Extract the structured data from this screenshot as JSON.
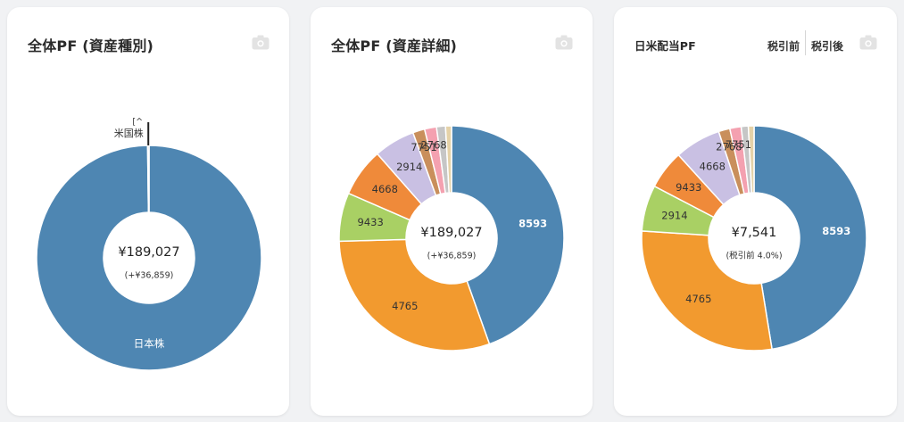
{
  "cards": [
    {
      "title": "全体PF (資産種別)",
      "center_main": "¥189,027",
      "center_sub": "(+¥36,859)"
    },
    {
      "title": "全体PF (資産詳細)",
      "center_main": "¥189,027",
      "center_sub": "(+¥36,859)"
    },
    {
      "title": "日米配当PF",
      "tabs": [
        "税引前",
        "税引後"
      ],
      "center_main": "¥7,541",
      "center_sub": "(税引前 4.0%)"
    }
  ],
  "icons": {
    "camera": "camera-icon"
  },
  "chart_data": [
    {
      "type": "pie",
      "title": "全体PF (資産種別)",
      "inner_radius_ratio": 0.4,
      "labels": [
        "日本株",
        "米国株"
      ],
      "values": [
        99.8,
        0.2
      ],
      "colors": [
        "#4e86b2",
        "#333333"
      ],
      "truncated_label": "[^"
    },
    {
      "type": "pie",
      "title": "全体PF (資産詳細)",
      "inner_radius_ratio": 0.4,
      "labels": [
        "8593",
        "4765",
        "9433",
        "4668",
        "2914",
        "7751",
        "2768",
        "",
        ""
      ],
      "values": [
        41.5,
        28.0,
        6.5,
        6.5,
        5.5,
        1.6,
        1.6,
        1.2,
        0.8
      ],
      "colors": [
        "#4e86b2",
        "#f29a2f",
        "#a9d064",
        "#ef8a3a",
        "#c9c0e3",
        "#c98f5c",
        "#f4a1b0",
        "#c6c6c6",
        "#e5d2a8"
      ]
    },
    {
      "type": "pie",
      "title": "日米配当PF",
      "inner_radius_ratio": 0.4,
      "labels": [
        "8593",
        "4765",
        "2914",
        "9433",
        "4668",
        "2768",
        "7751",
        "",
        ""
      ],
      "values": [
        46.5,
        28.0,
        6.5,
        5.5,
        6.5,
        1.6,
        1.6,
        1.0,
        0.8
      ],
      "colors": [
        "#4e86b2",
        "#f29a2f",
        "#a9d064",
        "#ef8a3a",
        "#c9c0e3",
        "#c98f5c",
        "#f4a1b0",
        "#c6c6c6",
        "#e5d2a8"
      ]
    }
  ]
}
